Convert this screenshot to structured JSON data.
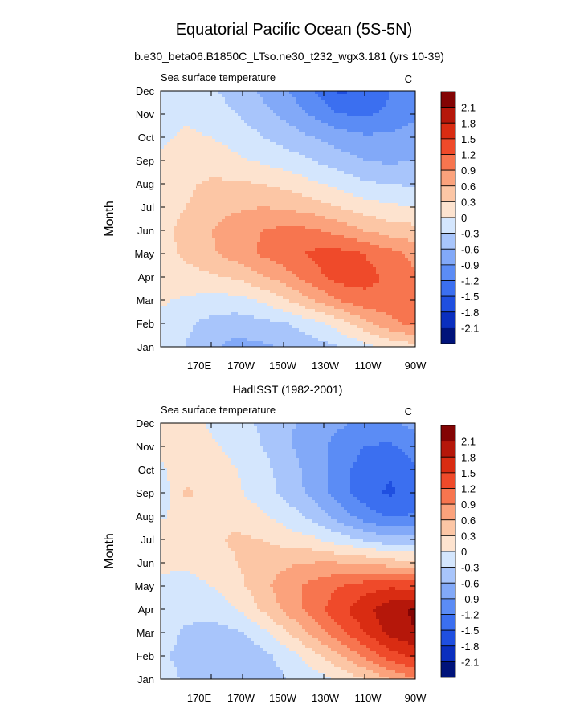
{
  "title": "Equatorial Pacific Ocean (5S-5N)",
  "subtitle": "b.e30_beta06.B1850C_LTso.ne30_t232_wgx3.181 (yrs 10-39)",
  "colors": {
    "levels": [
      "#00137a",
      "#0a2fbf",
      "#1f4fe0",
      "#3b6ff0",
      "#5b8cf5",
      "#82a9f8",
      "#a8c5fb",
      "#d4e6fd",
      "#fde3cf",
      "#fcc6a5",
      "#fba27c",
      "#f7754f",
      "#ef4a2a",
      "#d92c12",
      "#b5170a",
      "#830404"
    ],
    "background": "#ffffff",
    "frame": "#000000"
  },
  "chart_data": [
    {
      "type": "heatmap",
      "name": "model",
      "panel_label": "",
      "title": "Sea surface temperature",
      "units": "C",
      "ylabel": "Month",
      "xlabel": "",
      "x_ticks": [
        "170E",
        "170W",
        "150W",
        "130W",
        "110W",
        "90W"
      ],
      "y_ticks": [
        "Jan",
        "Feb",
        "Mar",
        "Apr",
        "May",
        "Jun",
        "Jul",
        "Aug",
        "Sep",
        "Oct",
        "Nov",
        "Dec"
      ],
      "colorbar_labels": [
        "2.1",
        "1.8",
        "1.5",
        "1.2",
        "0.9",
        "0.6",
        "0.3",
        "0",
        "-0.3",
        "-0.6",
        "-0.9",
        "-1.2",
        "-1.5",
        "-1.8",
        "-2.1"
      ],
      "levels": [
        -2.1,
        -1.8,
        -1.5,
        -1.2,
        -0.9,
        -0.6,
        -0.3,
        0,
        0.3,
        0.6,
        0.9,
        1.2,
        1.5,
        1.8,
        2.1
      ],
      "longitudes": [
        "170E",
        "180",
        "170W",
        "160W",
        "150W",
        "140W",
        "130W",
        "120W",
        "110W",
        "100W",
        "90W"
      ],
      "months": [
        "Jan",
        "Feb",
        "Mar",
        "Apr",
        "May",
        "Jun",
        "Jul",
        "Aug",
        "Sep",
        "Oct",
        "Nov",
        "Dec"
      ],
      "values": [
        [
          -0.2,
          -0.3,
          -0.55,
          -0.7,
          -0.65,
          -0.55,
          -0.45,
          -0.3,
          -0.1,
          0.1,
          0.2
        ],
        [
          -0.1,
          -0.25,
          -0.4,
          -0.45,
          -0.4,
          -0.3,
          -0.1,
          0.15,
          0.5,
          0.8,
          1.0
        ],
        [
          0.05,
          -0.05,
          -0.1,
          -0.1,
          0.05,
          0.3,
          0.6,
          0.9,
          1.1,
          1.15,
          1.1
        ],
        [
          0.15,
          0.2,
          0.25,
          0.35,
          0.55,
          0.8,
          1.1,
          1.35,
          1.3,
          1.15,
          0.95
        ],
        [
          0.2,
          0.35,
          0.55,
          0.75,
          0.95,
          1.1,
          1.25,
          1.3,
          1.2,
          1.0,
          0.8
        ],
        [
          0.2,
          0.4,
          0.6,
          0.8,
          0.9,
          1.0,
          0.95,
          0.8,
          0.6,
          0.45,
          0.4
        ],
        [
          0.15,
          0.3,
          0.45,
          0.55,
          0.6,
          0.55,
          0.45,
          0.3,
          0.15,
          0.05,
          0.0
        ],
        [
          0.1,
          0.25,
          0.35,
          0.35,
          0.3,
          0.2,
          0.05,
          -0.1,
          -0.25,
          -0.3,
          -0.35
        ],
        [
          0.05,
          0.15,
          0.15,
          0.05,
          -0.05,
          -0.15,
          -0.3,
          -0.45,
          -0.6,
          -0.65,
          -0.6
        ],
        [
          -0.05,
          0.05,
          0.0,
          -0.1,
          -0.3,
          -0.45,
          -0.6,
          -0.75,
          -0.85,
          -0.85,
          -0.75
        ],
        [
          -0.15,
          -0.05,
          -0.15,
          -0.3,
          -0.5,
          -0.7,
          -0.95,
          -1.2,
          -1.25,
          -1.15,
          -0.95
        ],
        [
          -0.15,
          -0.1,
          -0.25,
          -0.45,
          -0.65,
          -0.9,
          -1.2,
          -1.55,
          -1.45,
          -1.2,
          -0.95
        ]
      ]
    },
    {
      "type": "heatmap",
      "name": "observed",
      "panel_label": "HadISST (1982-2001)",
      "title": "Sea surface temperature",
      "units": "C",
      "ylabel": "Month",
      "xlabel": "",
      "x_ticks": [
        "170E",
        "170W",
        "150W",
        "130W",
        "110W",
        "90W"
      ],
      "y_ticks": [
        "Jan",
        "Feb",
        "Mar",
        "Apr",
        "May",
        "Jun",
        "Jul",
        "Aug",
        "Sep",
        "Oct",
        "Nov",
        "Dec"
      ],
      "colorbar_labels": [
        "2.1",
        "1.8",
        "1.5",
        "1.2",
        "0.9",
        "0.6",
        "0.3",
        "0",
        "-0.3",
        "-0.6",
        "-0.9",
        "-1.2",
        "-1.5",
        "-1.8",
        "-2.1"
      ],
      "levels": [
        -2.1,
        -1.8,
        -1.5,
        -1.2,
        -0.9,
        -0.6,
        -0.3,
        0,
        0.3,
        0.6,
        0.9,
        1.2,
        1.5,
        1.8,
        2.1
      ],
      "longitudes": [
        "170E",
        "180",
        "170W",
        "160W",
        "150W",
        "140W",
        "130W",
        "120W",
        "110W",
        "100W",
        "90W"
      ],
      "months": [
        "Jan",
        "Feb",
        "Mar",
        "Apr",
        "May",
        "Jun",
        "Jul",
        "Aug",
        "Sep",
        "Oct",
        "Nov",
        "Dec"
      ],
      "values": [
        [
          -0.15,
          -0.35,
          -0.55,
          -0.55,
          -0.45,
          -0.3,
          -0.15,
          0.05,
          0.3,
          0.6,
          0.9
        ],
        [
          -0.2,
          -0.45,
          -0.55,
          -0.55,
          -0.4,
          -0.15,
          0.2,
          0.55,
          0.95,
          1.35,
          1.6
        ],
        [
          -0.15,
          -0.35,
          -0.4,
          -0.35,
          -0.1,
          0.3,
          0.7,
          1.1,
          1.5,
          1.9,
          2.1
        ],
        [
          -0.1,
          -0.2,
          -0.2,
          0.0,
          0.35,
          0.7,
          1.05,
          1.4,
          1.7,
          2.0,
          2.15
        ],
        [
          -0.05,
          -0.1,
          0.0,
          0.2,
          0.5,
          0.8,
          1.0,
          1.2,
          1.35,
          1.45,
          1.4
        ],
        [
          0.05,
          0.05,
          0.15,
          0.3,
          0.45,
          0.55,
          0.6,
          0.6,
          0.55,
          0.45,
          0.35
        ],
        [
          0.15,
          0.15,
          0.25,
          0.35,
          0.3,
          0.15,
          0.05,
          -0.15,
          -0.35,
          -0.5,
          -0.5
        ],
        [
          -0.05,
          0.15,
          0.25,
          0.2,
          0.05,
          -0.15,
          -0.4,
          -0.75,
          -1.05,
          -1.25,
          -1.15
        ],
        [
          -0.2,
          0.35,
          0.2,
          0.05,
          -0.15,
          -0.4,
          -0.7,
          -1.05,
          -1.35,
          -1.55,
          -1.35
        ],
        [
          -0.05,
          0.2,
          0.15,
          0.0,
          -0.2,
          -0.45,
          -0.75,
          -1.05,
          -1.35,
          -1.45,
          -1.25
        ],
        [
          0.05,
          0.15,
          0.05,
          -0.1,
          -0.3,
          -0.55,
          -0.8,
          -1.0,
          -1.2,
          -1.25,
          -1.05
        ],
        [
          0.1,
          0.1,
          -0.05,
          -0.2,
          -0.35,
          -0.55,
          -0.75,
          -0.85,
          -0.95,
          -0.95,
          -0.8
        ]
      ]
    }
  ]
}
